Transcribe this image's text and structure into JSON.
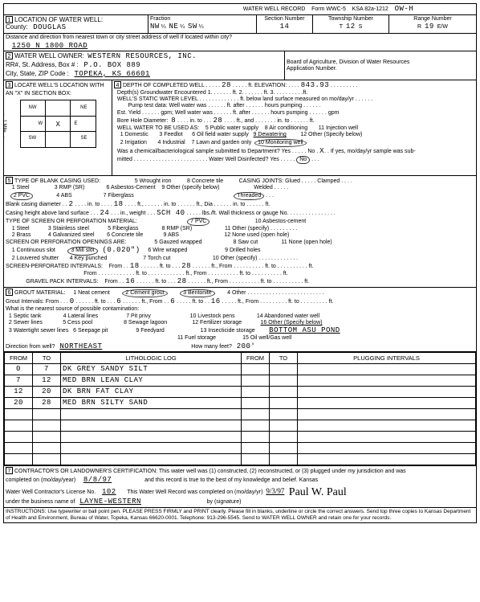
{
  "header": {
    "title": "WATER WELL RECORD",
    "form": "Form WWC-5",
    "ksa": "KSA 82a-1212",
    "ow": "OW-H"
  },
  "s1": {
    "label": "LOCATION OF WATER WELL:",
    "countyLbl": "County:",
    "county": "DOUGLAS",
    "fracHdr": "Fraction",
    "fracA": "NW",
    "fracB": "NE",
    "fracC": "SW",
    "secHdr": "Section Number",
    "sec": "14",
    "twpHdr": "Township Number",
    "twp": "12",
    "twpS": "S",
    "rngHdr": "Range Number",
    "rng": "19",
    "rngE": "E/W",
    "distLbl": "Distance and direction from nearest town or city street address of well if located within city?",
    "addr": "1250 N 1800 ROAD"
  },
  "s2": {
    "label": "WATER WELL OWNER:",
    "owner": "WESTERN RESOURCES, INC.",
    "addrLbl": "RR#, St. Address, Box # :",
    "addr": "P.O. BOX 889",
    "cityLbl": "City, State, ZIP Code :",
    "city": "TOPEKA, KS  66601",
    "board": "Board of Agriculture, Division of Water Resources",
    "appLbl": "Application Number."
  },
  "s3": {
    "label": "LOCATE WELL'S LOCATION WITH AN \"X\" IN SECTION BOX:",
    "mark": "X"
  },
  "s4": {
    "label": "DEPTH OF COMPLETED WELL",
    "depth": "28",
    "elevLbl": "ft. ELEVATION:",
    "elev": "843.93",
    "gw": "Depth(s) Groundwater Encountered   1.",
    "gw2": "ft.   2.",
    "gw3": "ft.   3.",
    "static": "WELL'S STATIC WATER LEVEL",
    "staticTxt": "ft. below land surface measured on mo/day/yr",
    "pump": "Pump test data: Well water was",
    "pump2": "ft. after",
    "pump3": "hours pumping",
    "est": "Est. Yield",
    "gpm": "gpm; Well water was",
    "est2": "ft. after",
    "est3": "hours pumping",
    "gpmEnd": "gpm",
    "bore": "Bore Hole Diameter:",
    "boreV": "8",
    "boreTo": "in. to",
    "boreD": "28",
    "boreFt": "ft., and",
    "boreIn": "in. to",
    "boreFt2": "ft.",
    "use": "WELL WATER TO BE USED AS:",
    "u1": "1 Domestic",
    "u2": "2 Irrigation",
    "u3": "3 Feedlot",
    "u4": "4 Industrial",
    "u5": "5 Public water supply",
    "u6": "6 Oil field water supply",
    "u7": "7 Lawn and garden only",
    "u8": "8 Air conditioning",
    "u9": "9 Dewatering",
    "u10": "10 Monitoring well",
    "u11": "11 Injection well",
    "u12": "12 Other (Specify below)",
    "chem": "Was a chemical/bacteriological sample submitted to Department? Yes",
    "no": "No",
    "x": "X",
    "chem2": "If yes, mo/day/yr sample was sub-",
    "mitted": "mitted",
    "disinf": "Water Well Disinfected? Yes",
    "disNo": "No"
  },
  "s5": {
    "label": "TYPE OF BLANK CASING USED:",
    "c1": "1 Steel",
    "c2": "2 PVC",
    "c3": "3 RMP (SR)",
    "c4": "4 ABS",
    "c5": "5 Wrought iron",
    "c6": "6 Asbestos-Cement",
    "c7": "7 Fiberglass",
    "c8": "8 Concrete tile",
    "c9": "9 Other (specify below)",
    "joints": "CASING JOINTS: Glued",
    "clamped": "Clamped",
    "welded": "Welded",
    "threaded": "Threaded",
    "dia": "Blank casing diameter",
    "diaV1": "2",
    "into": "in. to",
    "diaV2": "18",
    "ft": "ft.,",
    "diaIn": "in. to",
    "diaFt": "ft., Dia",
    "diaIn2": "in. to",
    "diaFt2": "ft.",
    "height": "Casing height above land surface",
    "hIn": "24",
    "hW": "in., weight",
    "sch": "SCH 40",
    "lbs": "lbs./ft. Wall thickness or gauge No.",
    "perf": "TYPE OF SCREEN OR PERFORATION MATERIAL:",
    "p1": "1 Steel",
    "p2": "2 Brass",
    "p3": "3 Stainless steel",
    "p4": "4 Galvanized steel",
    "p5": "5 Fiberglass",
    "p6": "6 Concrete tile",
    "p7": "7 PVC",
    "p8": "8 RMP (SR)",
    "p9": "9 ABS",
    "p10": "10 Asbestos-cement",
    "p11": "11 Other (specify)",
    "p12": "12 None used (open hole)",
    "open": "SCREEN OR PERFORATION OPENINGS ARE:",
    "o1": "1 Continuous slot",
    "o2": "2 Louvered shutter",
    "o3": "3 Mill slot",
    "oSpec": "(0.020\")",
    "o4": "4 Key punched",
    "o5": "5 Gauzed wrapped",
    "o6": "6 Wire wrapped",
    "o7": "7 Torch cut",
    "o8": "8 Saw cut",
    "o9": "9 Drilled holes",
    "o10": "10 Other (specify)",
    "o11": "11 None (open hole)",
    "spi": "SCREEN-PERFORATED INTERVALS:",
    "from": "From",
    "spi1": "18",
    "to": "ft. to",
    "spi2": "28",
    "spiFt": "ft., From",
    "spiTo": "ft. to",
    "spiFt2": "ft.",
    "gp": "GRAVEL PACK INTERVALS:",
    "gp1": "16",
    "gp2": "28"
  },
  "s6": {
    "label": "GROUT MATERIAL:",
    "g1": "1 Neat cement",
    "g2": "2 Cement grout",
    "g3": "3 Bentonite",
    "g4": "4 Other",
    "gi": "Grout Intervals: From",
    "giV1": "0",
    "giTo": "ft. to",
    "giV2": "6",
    "giFrom": "ft., From",
    "giV3": "6",
    "giV4": "16",
    "near": "What is the nearest source of possible contamination:",
    "n1": "1 Septic tank",
    "n2": "2 Sewer lines",
    "n3": "3 Watertight sewer lines",
    "n4": "4 Lateral lines",
    "n5": "5 Cess pool",
    "n6": "6 Seepage pit",
    "n7": "7 Pit privy",
    "n8": "8 Sewage lagoon",
    "n9": "9 Feedyard",
    "n10": "10 Livestock pens",
    "n11": "11 Fuel storage",
    "n12": "12 Fertilizer storage",
    "n13": "13 Insecticide storage",
    "n14": "14 Abandoned water well",
    "n15": "15 Oil well/Gas well",
    "n16": "16 Other (Specify below)",
    "other": "BOTTOM ASU POND",
    "dir": "Direction from well?",
    "dirV": "NORTHEAST",
    "feet": "How many feet?",
    "feetV": "200'"
  },
  "log": {
    "h1": "FROM",
    "h2": "TO",
    "h3": "LITHOLOGIC LOG",
    "h4": "FROM",
    "h5": "TO",
    "h6": "PLUGGING INTERVALS",
    "rows": [
      {
        "f": "0",
        "t": "7",
        "l": "DK GREY SANDY SILT"
      },
      {
        "f": "7",
        "t": "12",
        "l": "MED BRN LEAN CLAY"
      },
      {
        "f": "12",
        "t": "20",
        "l": "DK BRN FAT CLAY"
      },
      {
        "f": "20",
        "t": "28",
        "l": "MED BRN SILTY SAND"
      }
    ]
  },
  "s7": {
    "label": "CONTRACTOR'S OR LANDOWNER'S CERTIFICATION:",
    "text": "This water well was (1) constructed, (2) reconstructed, or (3) plugged under my jurisdiction and was",
    "comp": "completed on (mo/day/year)",
    "date": "8/8/97",
    "rec": "and this record is true to the best of my knowledge and belief. Kansas",
    "lic": "Water Well Contractor's License No.",
    "licV": "102",
    "recC": "This Water Well Record was completed on (mo/day/yr)",
    "recD": "9/3/97",
    "bus": "under the business name of",
    "busV": "LAYNE-WESTERN",
    "sig": "by (signature)"
  },
  "instr": "INSTRUCTIONS: Use typewriter or ball point pen. PLEASE PRESS FIRMLY and PRINT clearly. Please fill in blanks, underline or circle the correct answers. Send top three copies to Kansas Department of Health and Environment, Bureau of Water, Topeka, Kansas 66620-0001. Telephone: 913-296-5545. Send to WATER WELL OWNER and retain one for your records."
}
